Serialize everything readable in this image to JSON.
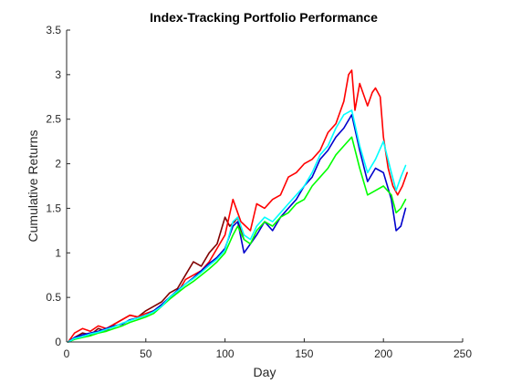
{
  "chart_data": {
    "type": "line",
    "title": "Index-Tracking Portfolio Performance",
    "xlabel": "Day",
    "ylabel": "Cumulative Returns",
    "xlim": [
      0,
      250
    ],
    "ylim": [
      0,
      3.5
    ],
    "xticks": [
      0,
      50,
      100,
      150,
      200,
      250
    ],
    "xtick_labels": [
      "0",
      "50",
      "100",
      "150",
      "200",
      "250"
    ],
    "yticks": [
      0,
      0.5,
      1,
      1.5,
      2,
      2.5,
      3,
      3.5
    ],
    "ytick_labels": [
      "0",
      "0.5",
      "1",
      "1.5",
      "2",
      "2.5",
      "3",
      "3.5"
    ],
    "grid": false,
    "legend": "none",
    "series": [
      {
        "color": "#800000",
        "x": [
          1,
          5,
          10,
          15,
          20,
          25,
          30,
          35,
          40,
          45,
          50,
          55,
          60,
          65,
          70,
          75,
          80,
          85,
          90,
          95,
          100,
          103,
          106,
          108,
          110,
          112
        ],
        "y": [
          0.0,
          0.05,
          0.1,
          0.08,
          0.15,
          0.12,
          0.2,
          0.25,
          0.3,
          0.28,
          0.35,
          0.4,
          0.45,
          0.55,
          0.6,
          0.75,
          0.9,
          0.85,
          1.0,
          1.1,
          1.4,
          1.3,
          1.35,
          1.4,
          1.25,
          1.15
        ]
      },
      {
        "color": "#FF0000",
        "x": [
          1,
          5,
          10,
          15,
          20,
          25,
          30,
          35,
          40,
          45,
          50,
          55,
          60,
          65,
          70,
          75,
          80,
          85,
          90,
          95,
          100,
          105,
          108,
          110,
          113,
          116,
          120,
          125,
          130,
          135,
          140,
          145,
          150,
          155,
          160,
          165,
          170,
          175,
          178,
          180,
          182,
          185,
          190,
          193,
          195,
          198,
          200,
          203,
          206,
          209,
          212,
          215
        ],
        "y": [
          0.0,
          0.1,
          0.15,
          0.12,
          0.18,
          0.15,
          0.2,
          0.25,
          0.3,
          0.28,
          0.32,
          0.35,
          0.4,
          0.5,
          0.55,
          0.7,
          0.75,
          0.8,
          0.9,
          1.05,
          1.2,
          1.6,
          1.45,
          1.35,
          1.3,
          1.25,
          1.55,
          1.5,
          1.6,
          1.65,
          1.85,
          1.9,
          2.0,
          2.05,
          2.15,
          2.35,
          2.45,
          2.7,
          3.0,
          3.05,
          2.6,
          2.9,
          2.65,
          2.8,
          2.85,
          2.75,
          2.3,
          1.95,
          1.75,
          1.65,
          1.75,
          1.9
        ]
      },
      {
        "color": "#0000CC",
        "x": [
          1,
          5,
          10,
          15,
          20,
          25,
          30,
          35,
          40,
          45,
          50,
          55,
          60,
          65,
          70,
          75,
          80,
          85,
          90,
          95,
          100,
          105,
          108,
          112,
          116,
          120,
          125,
          130,
          135,
          140,
          145,
          150,
          155,
          160,
          165,
          170,
          175,
          180,
          185,
          190,
          195,
          200,
          205,
          208,
          211,
          214
        ],
        "y": [
          0.0,
          0.05,
          0.08,
          0.1,
          0.12,
          0.15,
          0.18,
          0.2,
          0.25,
          0.27,
          0.3,
          0.35,
          0.42,
          0.5,
          0.58,
          0.65,
          0.72,
          0.8,
          0.88,
          0.95,
          1.05,
          1.3,
          1.35,
          1.0,
          1.1,
          1.2,
          1.35,
          1.25,
          1.4,
          1.5,
          1.6,
          1.75,
          1.85,
          2.05,
          2.15,
          2.3,
          2.4,
          2.55,
          2.15,
          1.8,
          1.95,
          1.9,
          1.6,
          1.25,
          1.3,
          1.5
        ]
      },
      {
        "color": "#00FF00",
        "x": [
          1,
          5,
          10,
          15,
          20,
          25,
          30,
          35,
          40,
          45,
          50,
          55,
          60,
          65,
          70,
          75,
          80,
          85,
          90,
          95,
          100,
          105,
          108,
          112,
          116,
          120,
          125,
          130,
          135,
          140,
          145,
          150,
          155,
          160,
          165,
          170,
          175,
          180,
          185,
          190,
          195,
          200,
          205,
          208,
          211,
          214
        ],
        "y": [
          0.0,
          0.03,
          0.05,
          0.07,
          0.1,
          0.12,
          0.15,
          0.18,
          0.22,
          0.25,
          0.28,
          0.32,
          0.4,
          0.48,
          0.55,
          0.62,
          0.68,
          0.75,
          0.82,
          0.9,
          1.0,
          1.2,
          1.3,
          1.15,
          1.1,
          1.25,
          1.35,
          1.3,
          1.4,
          1.45,
          1.55,
          1.6,
          1.75,
          1.85,
          1.95,
          2.1,
          2.2,
          2.3,
          1.95,
          1.65,
          1.7,
          1.75,
          1.65,
          1.45,
          1.5,
          1.6
        ]
      },
      {
        "color": "#00FFFF",
        "x": [
          1,
          5,
          10,
          15,
          20,
          25,
          30,
          35,
          40,
          45,
          50,
          55,
          60,
          65,
          70,
          75,
          80,
          85,
          90,
          95,
          100,
          105,
          108,
          112,
          116,
          120,
          125,
          130,
          135,
          140,
          145,
          150,
          155,
          160,
          165,
          170,
          175,
          180,
          185,
          190,
          195,
          200,
          205,
          208,
          211,
          214
        ],
        "y": [
          0.0,
          0.04,
          0.06,
          0.09,
          0.11,
          0.14,
          0.17,
          0.21,
          0.24,
          0.27,
          0.3,
          0.34,
          0.4,
          0.5,
          0.57,
          0.65,
          0.71,
          0.78,
          0.86,
          0.93,
          1.03,
          1.35,
          1.4,
          1.2,
          1.15,
          1.3,
          1.4,
          1.35,
          1.45,
          1.55,
          1.65,
          1.75,
          1.9,
          2.1,
          2.2,
          2.4,
          2.55,
          2.6,
          2.2,
          1.9,
          2.05,
          2.25,
          1.9,
          1.7,
          1.85,
          1.98
        ]
      }
    ]
  }
}
